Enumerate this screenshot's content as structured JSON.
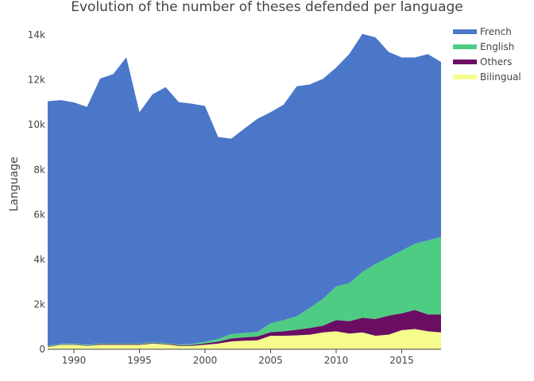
{
  "chart_data": {
    "type": "area",
    "title": "Evolution of the number of theses defended per language",
    "xlabel": "",
    "ylabel": "Language",
    "x": [
      1988,
      1989,
      1990,
      1991,
      1992,
      1993,
      1994,
      1995,
      1996,
      1997,
      1998,
      1999,
      2000,
      2001,
      2002,
      2003,
      2004,
      2005,
      2006,
      2007,
      2008,
      2009,
      2010,
      2011,
      2012,
      2013,
      2014,
      2015,
      2016,
      2017,
      2018
    ],
    "xlim": [
      1988,
      2018
    ],
    "ylim": [
      0,
      14500
    ],
    "x_ticks": [
      1990,
      1995,
      2000,
      2005,
      2010,
      2015
    ],
    "x_tick_labels": [
      "1990",
      "1995",
      "2000",
      "2005",
      "2010",
      "2015"
    ],
    "y_ticks": [
      0,
      2000,
      4000,
      6000,
      8000,
      10000,
      12000,
      14000
    ],
    "y_tick_labels": [
      "0",
      "2k",
      "4k",
      "6k",
      "8k",
      "10k",
      "12k",
      "14k"
    ],
    "stacked": true,
    "grid": false,
    "legend_position": "top-right",
    "series": [
      {
        "name": "Bilingual",
        "color": "#f5fb8c",
        "values": [
          100,
          200,
          200,
          150,
          200,
          200,
          200,
          200,
          250,
          220,
          150,
          150,
          200,
          250,
          350,
          380,
          400,
          600,
          600,
          620,
          650,
          750,
          800,
          700,
          750,
          600,
          650,
          850,
          900,
          800,
          750
        ]
      },
      {
        "name": "Others",
        "color": "#6a0d63",
        "values": [
          20,
          20,
          20,
          20,
          30,
          30,
          30,
          30,
          30,
          30,
          30,
          40,
          60,
          90,
          130,
          150,
          170,
          160,
          200,
          250,
          300,
          300,
          500,
          550,
          650,
          750,
          850,
          750,
          850,
          750,
          800
        ]
      },
      {
        "name": "English",
        "color": "#4fcc83",
        "values": [
          30,
          30,
          30,
          30,
          30,
          30,
          30,
          30,
          30,
          30,
          30,
          50,
          80,
          120,
          200,
          200,
          200,
          400,
          500,
          600,
          900,
          1200,
          1500,
          1700,
          2050,
          2450,
          2600,
          2800,
          2950,
          3300,
          3450
        ]
      },
      {
        "name": "French",
        "color": "#4b77c9",
        "values": [
          10900,
          10850,
          10750,
          10600,
          11800,
          12000,
          12750,
          10300,
          11050,
          11400,
          10800,
          10700,
          10500,
          9000,
          8700,
          9100,
          9500,
          9400,
          9600,
          10250,
          9950,
          9800,
          9750,
          10200,
          10600,
          10100,
          9150,
          8600,
          8300,
          8300,
          7800
        ]
      }
    ]
  }
}
